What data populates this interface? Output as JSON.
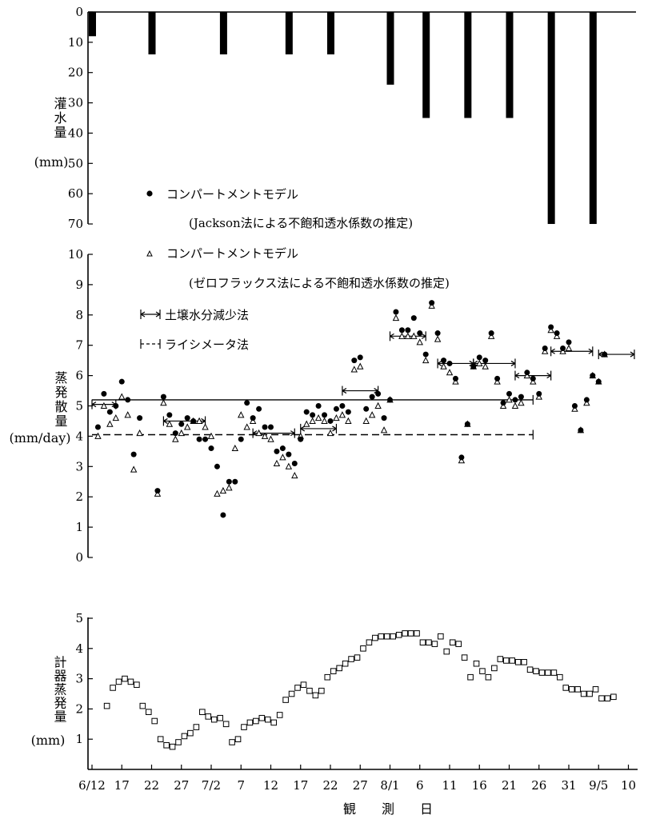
{
  "chart_data": [
    {
      "type": "bar",
      "panel": "irrigation",
      "ylabel": "灌水量",
      "yunit": "(mm)",
      "ylim": [
        0,
        70
      ],
      "y_inverted": true,
      "yticks": [
        "0",
        "10",
        "20",
        "30",
        "40",
        "50",
        "60",
        "70"
      ],
      "values": [
        {
          "day": 0,
          "mm": 8
        },
        {
          "day": 10,
          "mm": 14
        },
        {
          "day": 22,
          "mm": 14
        },
        {
          "day": 33,
          "mm": 14
        },
        {
          "day": 40,
          "mm": 14
        },
        {
          "day": 50,
          "mm": 24
        },
        {
          "day": 56,
          "mm": 35
        },
        {
          "day": 63,
          "mm": 35
        },
        {
          "day": 70,
          "mm": 35
        },
        {
          "day": 77,
          "mm": 70
        },
        {
          "day": 84,
          "mm": 70
        }
      ]
    },
    {
      "type": "scatter",
      "panel": "evapotranspiration",
      "ylabel": "蒸発散量",
      "yunit": "(mm/day)",
      "ylim": [
        0,
        10
      ],
      "yticks": [
        "0",
        "1",
        "2",
        "3",
        "4",
        "5",
        "6",
        "7",
        "8",
        "9",
        "10"
      ],
      "legend": {
        "dots_label": "コンパートメントモデル",
        "dots_sub": "(Jackson法による不飽和透水係数の推定)",
        "tri_label": "コンパートメントモデル",
        "tri_sub": "(ゼロフラックス法による不飽和透水係数の推定)",
        "soil_label": "土壌水分減少法",
        "lysi_label": "ライシメータ法"
      },
      "series": [
        {
          "name": "コンパートメントモデル (Jackson法)",
          "marker": "dot",
          "points": [
            [
              1,
              4.3
            ],
            [
              2,
              5.4
            ],
            [
              3,
              4.8
            ],
            [
              4,
              5
            ],
            [
              5,
              5.8
            ],
            [
              6,
              5.2
            ],
            [
              7,
              3.4
            ],
            [
              8,
              4.6
            ],
            [
              11,
              2.2
            ],
            [
              12,
              5.3
            ],
            [
              13,
              4.7
            ],
            [
              14,
              4.1
            ],
            [
              15,
              4.4
            ],
            [
              16,
              4.6
            ],
            [
              17,
              4.5
            ],
            [
              18,
              3.9
            ],
            [
              19,
              3.9
            ],
            [
              20,
              3.6
            ],
            [
              21,
              3
            ],
            [
              22,
              1.4
            ],
            [
              23,
              2.5
            ],
            [
              24,
              2.5
            ],
            [
              25,
              3.9
            ],
            [
              26,
              5.1
            ],
            [
              27,
              4.6
            ],
            [
              28,
              4.9
            ],
            [
              29,
              4.3
            ],
            [
              30,
              4.3
            ],
            [
              31,
              3.5
            ],
            [
              32,
              3.6
            ],
            [
              33,
              3.4
            ],
            [
              34,
              3.1
            ],
            [
              35,
              3.9
            ],
            [
              36,
              4.8
            ],
            [
              37,
              4.7
            ],
            [
              38,
              5
            ],
            [
              39,
              4.7
            ],
            [
              40,
              4.5
            ],
            [
              41,
              4.9
            ],
            [
              42,
              5
            ],
            [
              43,
              4.8
            ],
            [
              44,
              6.5
            ],
            [
              45,
              6.6
            ],
            [
              46,
              4.9
            ],
            [
              47,
              5.3
            ],
            [
              48,
              5.4
            ],
            [
              49,
              4.6
            ],
            [
              50,
              5.2
            ],
            [
              51,
              8.1
            ],
            [
              52,
              7.5
            ],
            [
              53,
              7.5
            ],
            [
              54,
              7.9
            ],
            [
              55,
              7.4
            ],
            [
              56,
              6.7
            ],
            [
              57,
              8.4
            ],
            [
              58,
              7.4
            ],
            [
              59,
              6.5
            ],
            [
              60,
              6.4
            ],
            [
              61,
              5.9
            ],
            [
              62,
              3.3
            ],
            [
              63,
              4.4
            ],
            [
              64,
              6.3
            ],
            [
              65,
              6.6
            ],
            [
              66,
              6.5
            ],
            [
              67,
              7.4
            ],
            [
              68,
              5.9
            ],
            [
              69,
              5.1
            ],
            [
              70,
              5.4
            ],
            [
              71,
              5.2
            ],
            [
              72,
              5.3
            ],
            [
              73,
              6.1
            ],
            [
              74,
              5.9
            ],
            [
              75,
              5.4
            ],
            [
              76,
              6.9
            ],
            [
              77,
              7.6
            ],
            [
              78,
              7.4
            ],
            [
              79,
              6.9
            ],
            [
              80,
              7.1
            ],
            [
              81,
              5
            ],
            [
              82,
              4.2
            ],
            [
              83,
              5.2
            ],
            [
              84,
              6
            ],
            [
              85,
              5.8
            ],
            [
              86,
              6.7
            ]
          ]
        },
        {
          "name": "コンパートメントモデル (ゼロフラックス法)",
          "marker": "triangle",
          "points": [
            [
              1,
              4
            ],
            [
              2,
              5
            ],
            [
              3,
              4.4
            ],
            [
              4,
              4.6
            ],
            [
              5,
              5.3
            ],
            [
              6,
              4.7
            ],
            [
              7,
              2.9
            ],
            [
              8,
              4.1
            ],
            [
              11,
              2.1
            ],
            [
              12,
              5.1
            ],
            [
              13,
              4.4
            ],
            [
              14,
              3.9
            ],
            [
              15,
              4.1
            ],
            [
              16,
              4.3
            ],
            [
              17,
              4.5
            ],
            [
              18,
              4.5
            ],
            [
              19,
              4.3
            ],
            [
              20,
              4
            ],
            [
              21,
              2.1
            ],
            [
              22,
              2.2
            ],
            [
              23,
              2.3
            ],
            [
              24,
              3.6
            ],
            [
              25,
              4.7
            ],
            [
              26,
              4.3
            ],
            [
              27,
              4.5
            ],
            [
              28,
              4.1
            ],
            [
              29,
              4
            ],
            [
              30,
              3.9
            ],
            [
              31,
              3.1
            ],
            [
              32,
              3.3
            ],
            [
              33,
              3
            ],
            [
              34,
              2.7
            ],
            [
              35,
              4
            ],
            [
              36,
              4.4
            ],
            [
              37,
              4.5
            ],
            [
              38,
              4.6
            ],
            [
              39,
              4.5
            ],
            [
              40,
              4.1
            ],
            [
              41,
              4.6
            ],
            [
              42,
              4.7
            ],
            [
              43,
              4.5
            ],
            [
              44,
              6.2
            ],
            [
              45,
              6.3
            ],
            [
              46,
              4.5
            ],
            [
              47,
              4.7
            ],
            [
              48,
              5
            ],
            [
              49,
              4.2
            ],
            [
              50,
              5.2
            ],
            [
              51,
              7.9
            ],
            [
              52,
              7.3
            ],
            [
              53,
              7.3
            ],
            [
              54,
              7.3
            ],
            [
              55,
              7.1
            ],
            [
              56,
              6.5
            ],
            [
              57,
              8.3
            ],
            [
              58,
              7.2
            ],
            [
              59,
              6.3
            ],
            [
              60,
              6.1
            ],
            [
              61,
              5.8
            ],
            [
              62,
              3.2
            ],
            [
              63,
              4.4
            ],
            [
              64,
              6.3
            ],
            [
              65,
              6.4
            ],
            [
              66,
              6.3
            ],
            [
              67,
              7.3
            ],
            [
              68,
              5.8
            ],
            [
              69,
              5
            ],
            [
              70,
              5.2
            ],
            [
              71,
              5
            ],
            [
              72,
              5.1
            ],
            [
              73,
              6
            ],
            [
              74,
              5.8
            ],
            [
              75,
              5.3
            ],
            [
              76,
              6.8
            ],
            [
              77,
              7.5
            ],
            [
              78,
              7.3
            ],
            [
              79,
              6.8
            ],
            [
              80,
              6.9
            ],
            [
              81,
              4.9
            ],
            [
              82,
              4.2
            ],
            [
              83,
              5.1
            ],
            [
              84,
              6
            ],
            [
              85,
              5.8
            ],
            [
              86,
              6.7
            ]
          ]
        }
      ],
      "soil_moisture_intervals": [
        [
          0,
          4,
          5.05
        ],
        [
          12,
          19,
          4.5
        ],
        [
          27,
          34,
          4.1
        ],
        [
          35,
          41,
          4.25
        ],
        [
          42,
          48,
          5.5
        ],
        [
          50,
          56,
          7.3
        ],
        [
          58,
          64,
          6.4
        ],
        [
          64,
          71,
          6.4
        ],
        [
          71,
          77,
          6
        ],
        [
          77,
          84,
          6.8
        ],
        [
          85,
          91,
          6.7
        ]
      ],
      "lysimeter_lines": [
        {
          "style": "solid",
          "x": [
            0,
            74
          ],
          "y": 5.2
        },
        {
          "style": "dashed",
          "x": [
            0,
            74
          ],
          "y": 4.05
        }
      ]
    },
    {
      "type": "scatter",
      "panel": "pan-evaporation",
      "marker": "square",
      "ylabel": "計器蒸発量",
      "yunit": "(mm)",
      "ylim": [
        0,
        5
      ],
      "yticks": [
        "1",
        "2",
        "3",
        "4",
        "5"
      ],
      "xlabel": "観　　測　　日",
      "xticks": [
        {
          "day": 0,
          "label": "6/12"
        },
        {
          "day": 5,
          "label": "17"
        },
        {
          "day": 10,
          "label": "22"
        },
        {
          "day": 15,
          "label": "27"
        },
        {
          "day": 20,
          "label": "7/2"
        },
        {
          "day": 25,
          "label": "7"
        },
        {
          "day": 30,
          "label": "12"
        },
        {
          "day": 35,
          "label": "17"
        },
        {
          "day": 40,
          "label": "22"
        },
        {
          "day": 45,
          "label": "27"
        },
        {
          "day": 50,
          "label": "8/1"
        },
        {
          "day": 55,
          "label": "6"
        },
        {
          "day": 60,
          "label": "11"
        },
        {
          "day": 65,
          "label": "16"
        },
        {
          "day": 70,
          "label": "21"
        },
        {
          "day": 75,
          "label": "26"
        },
        {
          "day": 80,
          "label": "31"
        },
        {
          "day": 85,
          "label": "9/5"
        },
        {
          "day": 90,
          "label": "10"
        }
      ],
      "values": [
        2.1,
        2.7,
        2.9,
        3,
        2.9,
        2.8,
        2.1,
        1.9,
        1.6,
        1,
        0.8,
        0.75,
        0.9,
        1.1,
        1.2,
        1.4,
        1.9,
        1.75,
        1.65,
        1.7,
        1.5,
        0.9,
        1,
        1.4,
        1.55,
        1.6,
        1.7,
        1.65,
        1.55,
        1.8,
        2.3,
        2.5,
        2.7,
        2.8,
        2.6,
        2.45,
        2.6,
        3.05,
        3.25,
        3.35,
        3.5,
        3.65,
        3.7,
        4,
        4.2,
        4.35,
        4.4,
        4.4,
        4.4,
        4.45,
        4.5,
        4.5,
        4.5,
        4.2,
        4.2,
        4.15,
        4.4,
        3.9,
        4.2,
        4.15,
        3.7,
        3.05,
        3.5,
        3.25,
        3.05,
        3.35,
        3.65,
        3.6,
        3.6,
        3.55,
        3.55,
        3.3,
        3.25,
        3.2,
        3.2,
        3.2,
        3.05,
        2.7,
        2.65,
        2.65,
        2.5,
        2.5,
        2.65,
        2.35,
        2.35,
        2.4
      ]
    }
  ]
}
